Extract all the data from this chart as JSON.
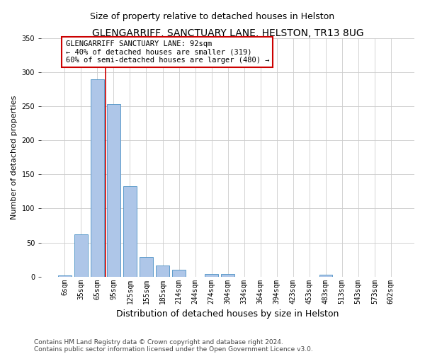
{
  "title": "GLENGARRIFF, SANCTUARY LANE, HELSTON, TR13 8UG",
  "subtitle": "Size of property relative to detached houses in Helston",
  "xlabel": "Distribution of detached houses by size in Helston",
  "ylabel": "Number of detached properties",
  "footnote1": "Contains HM Land Registry data © Crown copyright and database right 2024.",
  "footnote2": "Contains public sector information licensed under the Open Government Licence v3.0.",
  "annotation_line1": "GLENGARRIFF SANCTUARY LANE: 92sqm",
  "annotation_line2": "← 40% of detached houses are smaller (319)",
  "annotation_line3": "60% of semi-detached houses are larger (480) →",
  "bar_labels": [
    "6sqm",
    "35sqm",
    "65sqm",
    "95sqm",
    "125sqm",
    "155sqm",
    "185sqm",
    "214sqm",
    "244sqm",
    "274sqm",
    "304sqm",
    "334sqm",
    "364sqm",
    "394sqm",
    "423sqm",
    "453sqm",
    "483sqm",
    "513sqm",
    "543sqm",
    "573sqm",
    "602sqm"
  ],
  "bar_values": [
    2,
    62,
    290,
    253,
    133,
    29,
    16,
    10,
    0,
    4,
    4,
    0,
    0,
    0,
    0,
    0,
    3,
    0,
    0,
    0,
    0
  ],
  "bar_color": "#aec6e8",
  "bar_edge_color": "#4a90c4",
  "vline_color": "#cc0000",
  "annotation_box_color": "#ffffff",
  "annotation_box_edge": "#cc0000",
  "background_color": "#ffffff",
  "grid_color": "#cccccc",
  "ylim": [
    0,
    350
  ],
  "title_fontsize": 10,
  "subtitle_fontsize": 9,
  "xlabel_fontsize": 9,
  "ylabel_fontsize": 8,
  "tick_fontsize": 7,
  "annotation_fontsize": 7.5,
  "footnote_fontsize": 6.5
}
